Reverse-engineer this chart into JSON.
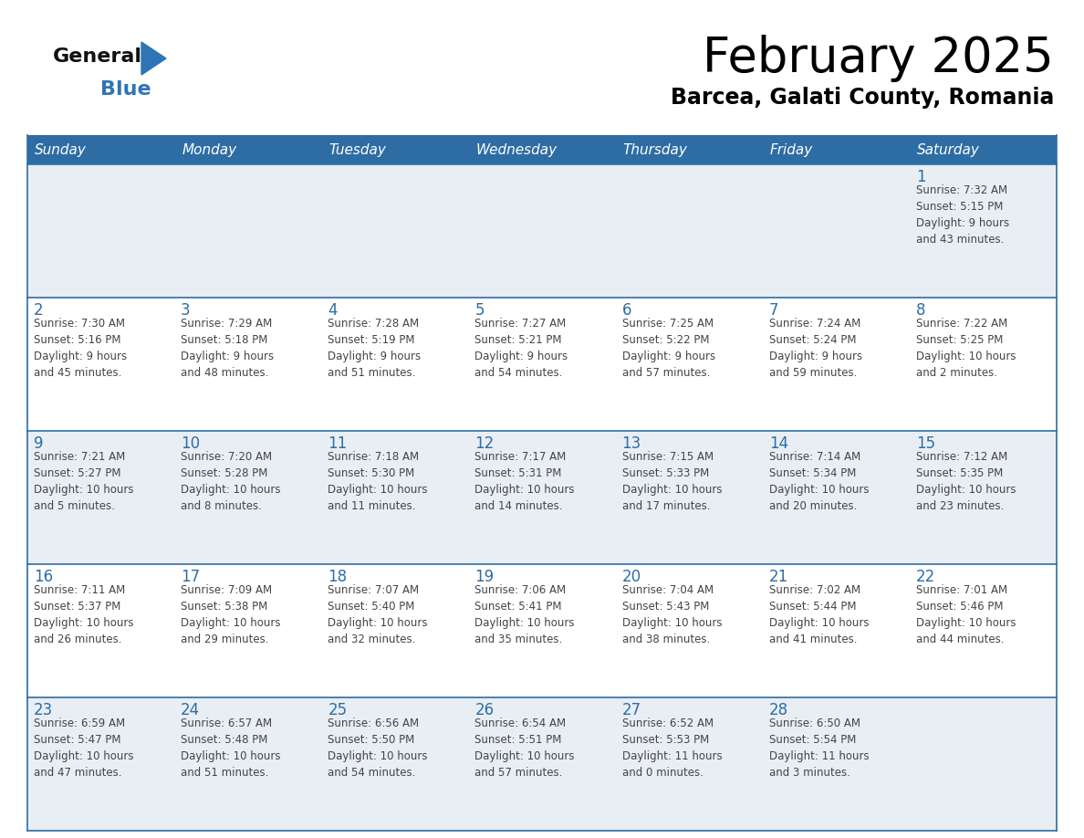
{
  "title": "February 2025",
  "subtitle": "Barcea, Galati County, Romania",
  "header_color": "#2e6da4",
  "header_text_color": "#ffffff",
  "cell_bg_light": "#e8eef4",
  "cell_bg_white": "#ffffff",
  "day_number_color": "#2e6da4",
  "text_color": "#444444",
  "logo_general_color": "#111111",
  "logo_blue_color": "#2e75b6",
  "days_of_week": [
    "Sunday",
    "Monday",
    "Tuesday",
    "Wednesday",
    "Thursday",
    "Friday",
    "Saturday"
  ],
  "weeks": [
    [
      {
        "day": null,
        "info": null
      },
      {
        "day": null,
        "info": null
      },
      {
        "day": null,
        "info": null
      },
      {
        "day": null,
        "info": null
      },
      {
        "day": null,
        "info": null
      },
      {
        "day": null,
        "info": null
      },
      {
        "day": "1",
        "info": "Sunrise: 7:32 AM\nSunset: 5:15 PM\nDaylight: 9 hours\nand 43 minutes."
      }
    ],
    [
      {
        "day": "2",
        "info": "Sunrise: 7:30 AM\nSunset: 5:16 PM\nDaylight: 9 hours\nand 45 minutes."
      },
      {
        "day": "3",
        "info": "Sunrise: 7:29 AM\nSunset: 5:18 PM\nDaylight: 9 hours\nand 48 minutes."
      },
      {
        "day": "4",
        "info": "Sunrise: 7:28 AM\nSunset: 5:19 PM\nDaylight: 9 hours\nand 51 minutes."
      },
      {
        "day": "5",
        "info": "Sunrise: 7:27 AM\nSunset: 5:21 PM\nDaylight: 9 hours\nand 54 minutes."
      },
      {
        "day": "6",
        "info": "Sunrise: 7:25 AM\nSunset: 5:22 PM\nDaylight: 9 hours\nand 57 minutes."
      },
      {
        "day": "7",
        "info": "Sunrise: 7:24 AM\nSunset: 5:24 PM\nDaylight: 9 hours\nand 59 minutes."
      },
      {
        "day": "8",
        "info": "Sunrise: 7:22 AM\nSunset: 5:25 PM\nDaylight: 10 hours\nand 2 minutes."
      }
    ],
    [
      {
        "day": "9",
        "info": "Sunrise: 7:21 AM\nSunset: 5:27 PM\nDaylight: 10 hours\nand 5 minutes."
      },
      {
        "day": "10",
        "info": "Sunrise: 7:20 AM\nSunset: 5:28 PM\nDaylight: 10 hours\nand 8 minutes."
      },
      {
        "day": "11",
        "info": "Sunrise: 7:18 AM\nSunset: 5:30 PM\nDaylight: 10 hours\nand 11 minutes."
      },
      {
        "day": "12",
        "info": "Sunrise: 7:17 AM\nSunset: 5:31 PM\nDaylight: 10 hours\nand 14 minutes."
      },
      {
        "day": "13",
        "info": "Sunrise: 7:15 AM\nSunset: 5:33 PM\nDaylight: 10 hours\nand 17 minutes."
      },
      {
        "day": "14",
        "info": "Sunrise: 7:14 AM\nSunset: 5:34 PM\nDaylight: 10 hours\nand 20 minutes."
      },
      {
        "day": "15",
        "info": "Sunrise: 7:12 AM\nSunset: 5:35 PM\nDaylight: 10 hours\nand 23 minutes."
      }
    ],
    [
      {
        "day": "16",
        "info": "Sunrise: 7:11 AM\nSunset: 5:37 PM\nDaylight: 10 hours\nand 26 minutes."
      },
      {
        "day": "17",
        "info": "Sunrise: 7:09 AM\nSunset: 5:38 PM\nDaylight: 10 hours\nand 29 minutes."
      },
      {
        "day": "18",
        "info": "Sunrise: 7:07 AM\nSunset: 5:40 PM\nDaylight: 10 hours\nand 32 minutes."
      },
      {
        "day": "19",
        "info": "Sunrise: 7:06 AM\nSunset: 5:41 PM\nDaylight: 10 hours\nand 35 minutes."
      },
      {
        "day": "20",
        "info": "Sunrise: 7:04 AM\nSunset: 5:43 PM\nDaylight: 10 hours\nand 38 minutes."
      },
      {
        "day": "21",
        "info": "Sunrise: 7:02 AM\nSunset: 5:44 PM\nDaylight: 10 hours\nand 41 minutes."
      },
      {
        "day": "22",
        "info": "Sunrise: 7:01 AM\nSunset: 5:46 PM\nDaylight: 10 hours\nand 44 minutes."
      }
    ],
    [
      {
        "day": "23",
        "info": "Sunrise: 6:59 AM\nSunset: 5:47 PM\nDaylight: 10 hours\nand 47 minutes."
      },
      {
        "day": "24",
        "info": "Sunrise: 6:57 AM\nSunset: 5:48 PM\nDaylight: 10 hours\nand 51 minutes."
      },
      {
        "day": "25",
        "info": "Sunrise: 6:56 AM\nSunset: 5:50 PM\nDaylight: 10 hours\nand 54 minutes."
      },
      {
        "day": "26",
        "info": "Sunrise: 6:54 AM\nSunset: 5:51 PM\nDaylight: 10 hours\nand 57 minutes."
      },
      {
        "day": "27",
        "info": "Sunrise: 6:52 AM\nSunset: 5:53 PM\nDaylight: 11 hours\nand 0 minutes."
      },
      {
        "day": "28",
        "info": "Sunrise: 6:50 AM\nSunset: 5:54 PM\nDaylight: 11 hours\nand 3 minutes."
      },
      {
        "day": null,
        "info": null
      }
    ]
  ]
}
